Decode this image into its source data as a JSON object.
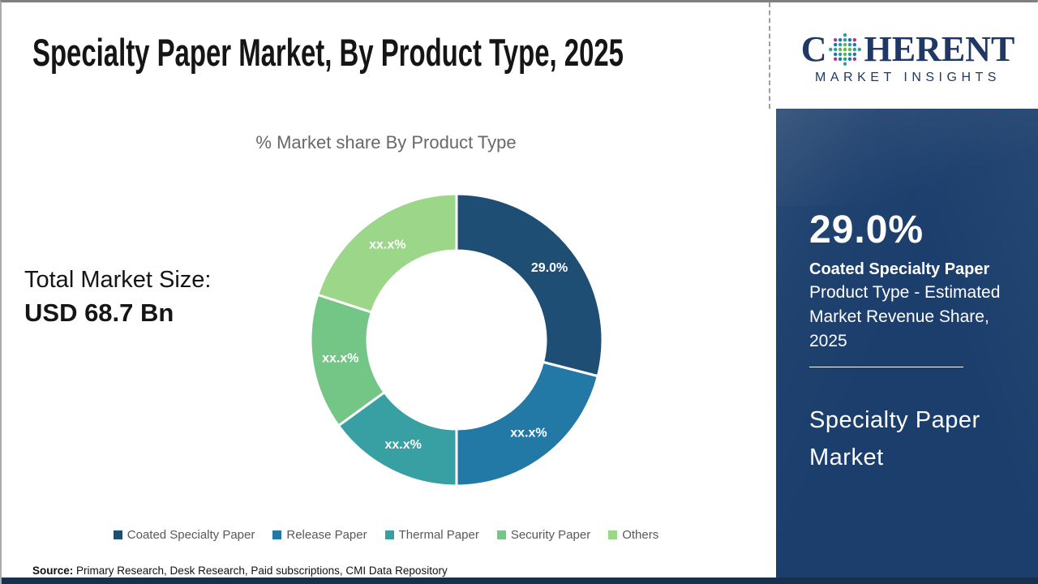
{
  "header": {
    "title": "Specialty Paper Market, By Product Type, 2025"
  },
  "logo": {
    "line1_prefix": "C",
    "line1_suffix": "HERENT",
    "line2": "MARKET INSIGHTS",
    "text_color": "#203864",
    "globe_dot_colors": [
      "#2a9d9f",
      "#64b54c",
      "#b0368c",
      "#1b75bb"
    ]
  },
  "chart_data": {
    "type": "pie",
    "subtype": "donut",
    "title": "% Market share By Product Type",
    "categories": [
      "Coated Specialty Paper",
      "Release Paper",
      "Thermal Paper",
      "Security Paper",
      "Others"
    ],
    "values": [
      29,
      21,
      15,
      15,
      20
    ],
    "labels": [
      "29.0%",
      "xx.x%",
      "xx.x%",
      "xx.x%",
      "xx.x%"
    ],
    "colors": [
      "#1f4e74",
      "#2279a5",
      "#38a0a2",
      "#74c687",
      "#9cd688"
    ],
    "start_angle_deg": 0,
    "direction": "clockwise",
    "legend_position": "bottom"
  },
  "left_panel": {
    "total_label": "Total Market Size:",
    "total_value": "USD 68.7 Bn"
  },
  "sidebar": {
    "stat_value": "29.0%",
    "stat_bold": "Coated Specialty Paper",
    "stat_desc": "Product Type - Estimated Market Revenue Share, 2025",
    "market_name": "Specialty Paper Market",
    "bg_color": "#1b3e6c"
  },
  "footer": {
    "source_label": "Source:",
    "source_text": "Primary Research, Desk Research, Paid subscriptions, CMI Data Repository"
  }
}
